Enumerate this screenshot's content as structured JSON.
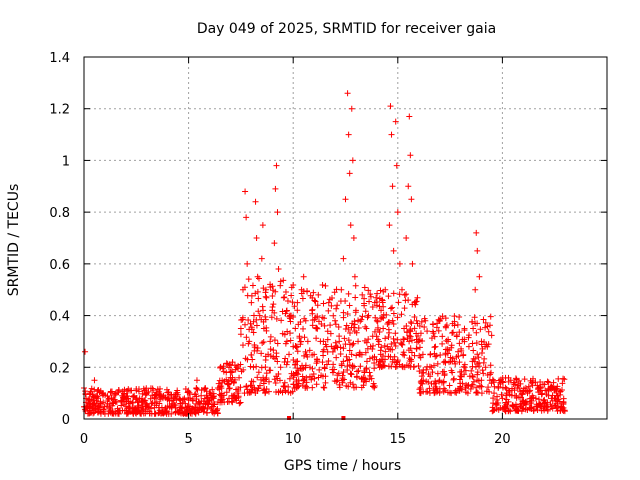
{
  "chart_data": {
    "type": "scatter",
    "title": "Day 049 of 2025, SRMTID for receiver gaia",
    "xlabel": "GPS time / hours",
    "ylabel": "SRMTID / TECUs",
    "xlim": [
      0,
      25.0
    ],
    "ylim": [
      0,
      1.4
    ],
    "grid": true,
    "marker": "+",
    "marker_color": "#ff0000",
    "xticks": [
      0,
      5,
      10,
      15,
      20
    ],
    "xtick_labels": [
      "0",
      "5",
      "10",
      "15",
      "20"
    ],
    "yticks": [
      0,
      0.2,
      0.4,
      0.6,
      0.8,
      1,
      1.2,
      1.4
    ],
    "ytick_labels": [
      "0",
      "0.2",
      "0.4",
      "0.6",
      "0.8",
      "1",
      "1.2",
      "1.4"
    ],
    "series": [
      {
        "name": "SRMTID",
        "points": [
          [
            0.0,
            0.12
          ],
          [
            0.05,
            0.26
          ],
          [
            0.1,
            0.08
          ],
          [
            0.2,
            0.05
          ],
          [
            0.3,
            0.1
          ],
          [
            0.4,
            0.04
          ],
          [
            0.5,
            0.15
          ],
          [
            0.6,
            0.07
          ],
          [
            0.7,
            0.03
          ],
          [
            0.8,
            0.06
          ],
          [
            0.9,
            0.1
          ],
          [
            1.0,
            0.02
          ],
          [
            1.1,
            0.05
          ],
          [
            1.2,
            0.08
          ],
          [
            1.4,
            0.06
          ],
          [
            1.6,
            0.04
          ],
          [
            1.8,
            0.07
          ],
          [
            2.0,
            0.05
          ],
          [
            2.2,
            0.06
          ],
          [
            2.4,
            0.09
          ],
          [
            2.6,
            0.05
          ],
          [
            2.8,
            0.07
          ],
          [
            3.0,
            0.1
          ],
          [
            3.2,
            0.04
          ],
          [
            3.4,
            0.08
          ],
          [
            3.6,
            0.06
          ],
          [
            3.8,
            0.09
          ],
          [
            4.0,
            0.05
          ],
          [
            4.2,
            0.07
          ],
          [
            4.4,
            0.1
          ],
          [
            4.6,
            0.06
          ],
          [
            4.8,
            0.08
          ],
          [
            5.0,
            0.05
          ],
          [
            5.2,
            0.07
          ],
          [
            5.4,
            0.15
          ],
          [
            5.6,
            0.09
          ],
          [
            5.8,
            0.06
          ],
          [
            6.0,
            0.1
          ],
          [
            6.2,
            0.08
          ],
          [
            6.4,
            0.12
          ],
          [
            6.6,
            0.14
          ],
          [
            6.8,
            0.18
          ],
          [
            7.0,
            0.16
          ],
          [
            7.1,
            0.22
          ],
          [
            7.3,
            0.2
          ],
          [
            7.5,
            0.35
          ],
          [
            7.6,
            0.5
          ],
          [
            7.7,
            0.88
          ],
          [
            7.75,
            0.78
          ],
          [
            7.8,
            0.6
          ],
          [
            7.9,
            0.3
          ],
          [
            8.0,
            0.45
          ],
          [
            8.1,
            0.2
          ],
          [
            8.2,
            0.84
          ],
          [
            8.25,
            0.7
          ],
          [
            8.3,
            0.55
          ],
          [
            8.4,
            0.4
          ],
          [
            8.5,
            0.62
          ],
          [
            8.55,
            0.75
          ],
          [
            8.6,
            0.35
          ],
          [
            8.7,
            0.5
          ],
          [
            8.8,
            0.25
          ],
          [
            8.9,
            0.3
          ],
          [
            9.0,
            0.42
          ],
          [
            9.1,
            0.68
          ],
          [
            9.15,
            0.89
          ],
          [
            9.2,
            0.98
          ],
          [
            9.25,
            0.8
          ],
          [
            9.3,
            0.58
          ],
          [
            9.4,
            0.2
          ],
          [
            9.5,
            0.33
          ],
          [
            9.6,
            0.14
          ],
          [
            9.7,
            0.3
          ],
          [
            9.8,
            0.25
          ],
          [
            9.9,
            0.4
          ],
          [
            10.0,
            0.28
          ],
          [
            10.1,
            0.35
          ],
          [
            10.2,
            0.45
          ],
          [
            10.3,
            0.32
          ],
          [
            10.4,
            0.5
          ],
          [
            10.5,
            0.55
          ],
          [
            10.6,
            0.38
          ],
          [
            10.7,
            0.3
          ],
          [
            10.8,
            0.2
          ],
          [
            10.9,
            0.42
          ],
          [
            11.0,
            0.25
          ],
          [
            11.1,
            0.35
          ],
          [
            11.2,
            0.48
          ],
          [
            11.3,
            0.3
          ],
          [
            11.4,
            0.22
          ],
          [
            11.5,
            0.36
          ],
          [
            11.6,
            0.28
          ],
          [
            11.7,
            0.45
          ],
          [
            11.8,
            0.33
          ],
          [
            11.9,
            0.18
          ],
          [
            12.0,
            0.38
          ],
          [
            12.1,
            0.44
          ],
          [
            12.2,
            0.3
          ],
          [
            12.3,
            0.5
          ],
          [
            12.4,
            0.62
          ],
          [
            12.5,
            0.85
          ],
          [
            12.6,
            1.26
          ],
          [
            12.65,
            1.1
          ],
          [
            12.7,
            0.95
          ],
          [
            12.75,
            0.75
          ],
          [
            12.8,
            1.2
          ],
          [
            12.85,
            1.0
          ],
          [
            12.9,
            0.7
          ],
          [
            12.95,
            0.55
          ],
          [
            13.0,
            0.42
          ],
          [
            13.1,
            0.3
          ],
          [
            13.2,
            0.25
          ],
          [
            13.3,
            0.48
          ],
          [
            13.4,
            0.18
          ],
          [
            13.5,
            0.35
          ],
          [
            13.6,
            0.4
          ],
          [
            13.7,
            0.28
          ],
          [
            13.8,
            0.32
          ],
          [
            13.9,
            0.45
          ],
          [
            14.0,
            0.38
          ],
          [
            14.1,
            0.3
          ],
          [
            14.2,
            0.42
          ],
          [
            14.3,
            0.35
          ],
          [
            14.4,
            0.5
          ],
          [
            14.5,
            0.28
          ],
          [
            14.6,
            0.75
          ],
          [
            14.65,
            1.21
          ],
          [
            14.7,
            1.1
          ],
          [
            14.75,
            0.9
          ],
          [
            14.8,
            0.65
          ],
          [
            14.9,
            1.15
          ],
          [
            14.95,
            0.98
          ],
          [
            15.0,
            0.8
          ],
          [
            15.1,
            0.6
          ],
          [
            15.2,
            0.5
          ],
          [
            15.3,
            0.35
          ],
          [
            15.4,
            0.7
          ],
          [
            15.5,
            0.9
          ],
          [
            15.55,
            1.17
          ],
          [
            15.6,
            1.02
          ],
          [
            15.65,
            0.85
          ],
          [
            15.7,
            0.6
          ],
          [
            15.8,
            0.45
          ],
          [
            15.9,
            0.38
          ],
          [
            16.0,
            0.3
          ],
          [
            16.2,
            0.25
          ],
          [
            16.4,
            0.34
          ],
          [
            16.6,
            0.2
          ],
          [
            16.8,
            0.28
          ],
          [
            17.0,
            0.15
          ],
          [
            17.2,
            0.22
          ],
          [
            17.4,
            0.3
          ],
          [
            17.6,
            0.18
          ],
          [
            17.8,
            0.24
          ],
          [
            18.0,
            0.12
          ],
          [
            18.2,
            0.2
          ],
          [
            18.4,
            0.28
          ],
          [
            18.6,
            0.35
          ],
          [
            18.7,
            0.5
          ],
          [
            18.75,
            0.72
          ],
          [
            18.8,
            0.65
          ],
          [
            18.9,
            0.55
          ],
          [
            19.0,
            0.3
          ],
          [
            19.2,
            0.2
          ],
          [
            19.4,
            0.15
          ],
          [
            19.6,
            0.1
          ],
          [
            19.8,
            0.12
          ],
          [
            20.0,
            0.08
          ],
          [
            20.2,
            0.1
          ],
          [
            20.4,
            0.15
          ],
          [
            20.6,
            0.09
          ],
          [
            20.8,
            0.12
          ],
          [
            21.0,
            0.07
          ],
          [
            21.2,
            0.1
          ],
          [
            21.4,
            0.14
          ],
          [
            21.6,
            0.08
          ],
          [
            21.8,
            0.11
          ],
          [
            22.0,
            0.06
          ],
          [
            22.2,
            0.09
          ],
          [
            22.4,
            0.12
          ],
          [
            22.6,
            0.07
          ],
          [
            22.8,
            0.05
          ]
        ]
      }
    ],
    "dense_bands": [
      {
        "x_range": [
          0.0,
          6.4
        ],
        "y_range": [
          0.02,
          0.12
        ]
      },
      {
        "x_range": [
          6.4,
          7.5
        ],
        "y_range": [
          0.06,
          0.22
        ]
      },
      {
        "x_range": [
          7.5,
          10.0
        ],
        "y_range": [
          0.1,
          0.55
        ]
      },
      {
        "x_range": [
          10.0,
          14.0
        ],
        "y_range": [
          0.12,
          0.52
        ]
      },
      {
        "x_range": [
          14.0,
          16.0
        ],
        "y_range": [
          0.2,
          0.5
        ]
      },
      {
        "x_range": [
          16.0,
          19.5
        ],
        "y_range": [
          0.1,
          0.4
        ]
      },
      {
        "x_range": [
          19.5,
          23.0
        ],
        "y_range": [
          0.03,
          0.16
        ]
      }
    ],
    "axis_marks": [
      {
        "x": 9.8,
        "y": 0
      },
      {
        "x": 12.4,
        "y": 0
      }
    ]
  }
}
